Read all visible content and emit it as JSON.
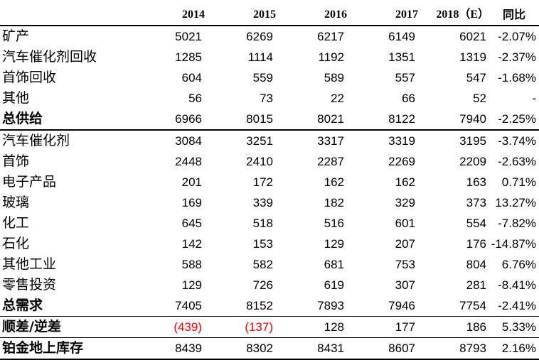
{
  "table": {
    "headers": [
      "",
      "2014",
      "2015",
      "2016",
      "2017",
      "2018（E）",
      "同比"
    ],
    "rows": [
      {
        "label": "矿产",
        "values": [
          "5021",
          "6269",
          "6217",
          "6149",
          "6021"
        ],
        "yoy": "-2.07%"
      },
      {
        "label": "汽车催化剂回收",
        "values": [
          "1285",
          "1114",
          "1192",
          "1351",
          "1319"
        ],
        "yoy": "-2.37%"
      },
      {
        "label": "首饰回收",
        "values": [
          "604",
          "559",
          "589",
          "557",
          "547"
        ],
        "yoy": "-1.68%"
      },
      {
        "label": "其他",
        "values": [
          "56",
          "73",
          "22",
          "66",
          "52"
        ],
        "yoy": "-"
      },
      {
        "label": "总供给",
        "values": [
          "6966",
          "8015",
          "8021",
          "8122",
          "7940"
        ],
        "yoy": "-2.25%",
        "bold": true
      },
      {
        "label": "汽车催化剂",
        "values": [
          "3084",
          "3251",
          "3317",
          "3319",
          "3195"
        ],
        "yoy": "-3.74%"
      },
      {
        "label": "首饰",
        "values": [
          "2448",
          "2410",
          "2287",
          "2269",
          "2209"
        ],
        "yoy": "-2.63%"
      },
      {
        "label": "电子产品",
        "values": [
          "201",
          "172",
          "162",
          "162",
          "163"
        ],
        "yoy": "0.71%"
      },
      {
        "label": "玻璃",
        "values": [
          "169",
          "339",
          "182",
          "329",
          "373"
        ],
        "yoy": "13.27%"
      },
      {
        "label": "化工",
        "values": [
          "645",
          "518",
          "516",
          "601",
          "554"
        ],
        "yoy": "-7.82%"
      },
      {
        "label": "石化",
        "values": [
          "142",
          "153",
          "129",
          "207",
          "176"
        ],
        "yoy": "-14.87%"
      },
      {
        "label": "其他工业",
        "values": [
          "588",
          "582",
          "681",
          "753",
          "804"
        ],
        "yoy": "6.76%"
      },
      {
        "label": "零售投资",
        "values": [
          "129",
          "726",
          "619",
          "307",
          "281"
        ],
        "yoy": "-8.41%"
      },
      {
        "label": "总需求",
        "values": [
          "7405",
          "8152",
          "7893",
          "7946",
          "7754"
        ],
        "yoy": "-2.41%",
        "bold": true
      },
      {
        "label": "顺差/逆差",
        "values": [
          "(439)",
          "(137)",
          "128",
          "177",
          "186"
        ],
        "yoy": "5.33%",
        "bold": true,
        "red_values": [
          0,
          1
        ]
      },
      {
        "label": "铂金地上库存",
        "values": [
          "8439",
          "8302",
          "8431",
          "8607",
          "8793"
        ],
        "yoy": "2.16%",
        "bold": true
      }
    ]
  },
  "colors": {
    "text": "#000000",
    "negative": "#ff0000",
    "background": "#ffffff"
  }
}
